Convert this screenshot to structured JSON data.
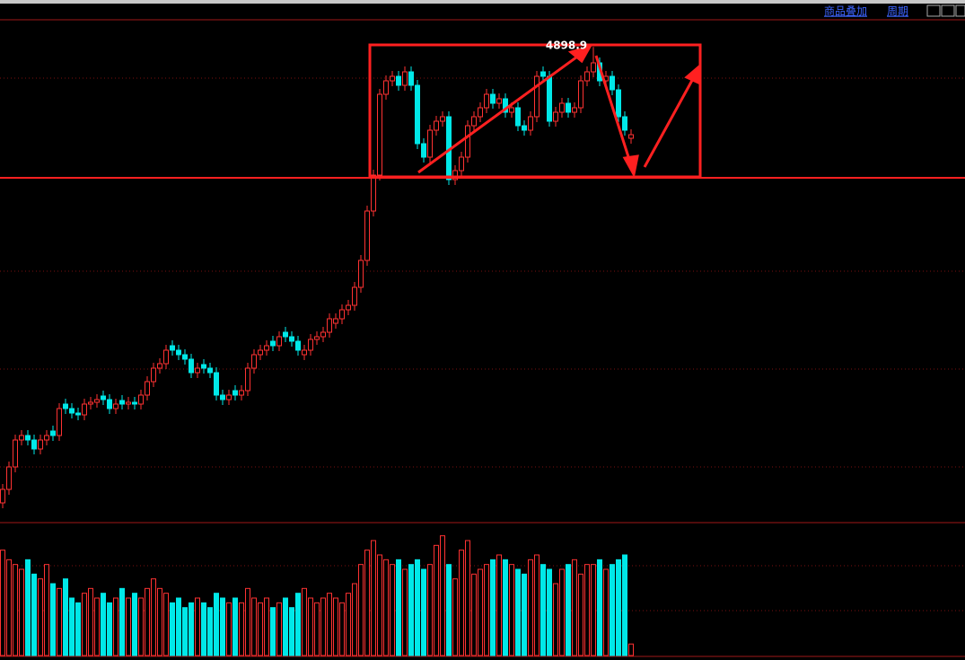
{
  "toolbar": {
    "overlay": "商品叠加",
    "period": "周期"
  },
  "chart_data": {
    "type": "candlestick",
    "open": [
      2360,
      2435,
      2560,
      2710,
      2735,
      2710,
      2660,
      2710,
      2760,
      2735,
      2910,
      2885,
      2860,
      2850,
      2910,
      2920,
      2955,
      2935,
      2885,
      2930,
      2910,
      2920,
      2910,
      2960,
      3035,
      3110,
      3135,
      3235,
      3210,
      3185,
      3160,
      3085,
      3130,
      3110,
      3085,
      2960,
      2935,
      2985,
      2960,
      2985,
      3110,
      3185,
      3210,
      3260,
      3235,
      3310,
      3285,
      3260,
      3185,
      3210,
      3270,
      3285,
      3310,
      3360,
      3385,
      3435,
      3460,
      3560,
      3710,
      3985,
      4185,
      4635,
      4710,
      4735,
      4685,
      4760,
      4685,
      4360,
      4285,
      4435,
      4485,
      4510,
      4160,
      4210,
      4285,
      4460,
      4510,
      4560,
      4635,
      4585,
      4610,
      4535,
      4560,
      4460,
      4435,
      4510,
      4760,
      4735,
      4485,
      4535,
      4585,
      4535,
      4560,
      4710,
      4760,
      4810,
      4710,
      4735,
      4660,
      4510,
      4390
    ],
    "high": [
      2465,
      2590,
      2740,
      2765,
      2765,
      2740,
      2740,
      2765,
      2790,
      2915,
      2940,
      2915,
      2890,
      2940,
      2950,
      2965,
      2985,
      2965,
      2940,
      2960,
      2950,
      2950,
      2990,
      3065,
      3140,
      3165,
      3240,
      3265,
      3240,
      3215,
      3190,
      3140,
      3160,
      3140,
      3115,
      2990,
      2990,
      3015,
      3015,
      3140,
      3215,
      3240,
      3265,
      3290,
      3315,
      3340,
      3315,
      3290,
      3240,
      3300,
      3315,
      3340,
      3415,
      3415,
      3465,
      3490,
      3590,
      3740,
      4015,
      4215,
      4665,
      4740,
      4765,
      4765,
      4790,
      4790,
      4715,
      4390,
      4465,
      4515,
      4540,
      4540,
      4240,
      4315,
      4490,
      4540,
      4590,
      4665,
      4665,
      4640,
      4640,
      4590,
      4590,
      4490,
      4540,
      4765,
      4790,
      4765,
      4565,
      4615,
      4615,
      4590,
      4740,
      4790,
      4898.9,
      4840,
      4765,
      4765,
      4690,
      4540,
      4440
    ],
    "low": [
      2330,
      2405,
      2530,
      2680,
      2680,
      2630,
      2630,
      2680,
      2705,
      2705,
      2855,
      2830,
      2820,
      2820,
      2880,
      2890,
      2905,
      2855,
      2855,
      2880,
      2880,
      2880,
      2880,
      2930,
      3005,
      3080,
      3105,
      3180,
      3155,
      3130,
      3055,
      3055,
      3080,
      3055,
      2930,
      2905,
      2905,
      2930,
      2930,
      2955,
      3080,
      3155,
      3180,
      3205,
      3205,
      3255,
      3230,
      3180,
      3155,
      3180,
      3240,
      3255,
      3280,
      3330,
      3355,
      3405,
      3430,
      3530,
      3680,
      3955,
      4155,
      4605,
      4680,
      4655,
      4655,
      4655,
      4330,
      4255,
      4255,
      4405,
      4455,
      4130,
      4130,
      4180,
      4255,
      4430,
      4480,
      4530,
      4555,
      4555,
      4505,
      4505,
      4430,
      4405,
      4405,
      4480,
      4705,
      4455,
      4455,
      4505,
      4505,
      4505,
      4530,
      4680,
      4730,
      4680,
      4680,
      4630,
      4480,
      4405,
      4360
    ],
    "close": [
      2435,
      2560,
      2710,
      2735,
      2710,
      2660,
      2710,
      2735,
      2735,
      2885,
      2885,
      2860,
      2850,
      2910,
      2920,
      2935,
      2935,
      2885,
      2910,
      2910,
      2920,
      2910,
      2960,
      3035,
      3110,
      3135,
      3210,
      3210,
      3185,
      3160,
      3085,
      3110,
      3110,
      3085,
      2960,
      2935,
      2960,
      2960,
      2985,
      3110,
      3185,
      3210,
      3235,
      3235,
      3285,
      3285,
      3260,
      3210,
      3210,
      3270,
      3285,
      3310,
      3385,
      3385,
      3435,
      3460,
      3560,
      3710,
      3985,
      4185,
      4635,
      4710,
      4735,
      4685,
      4760,
      4685,
      4360,
      4285,
      4435,
      4485,
      4510,
      4160,
      4210,
      4285,
      4460,
      4510,
      4560,
      4635,
      4585,
      4610,
      4535,
      4560,
      4460,
      4435,
      4510,
      4735,
      4735,
      4485,
      4535,
      4585,
      4535,
      4560,
      4710,
      4760,
      4810,
      4710,
      4735,
      4660,
      4510,
      4435,
      4410
    ],
    "volume": [
      110,
      100,
      95,
      90,
      100,
      85,
      80,
      95,
      75,
      70,
      80,
      60,
      55,
      65,
      70,
      60,
      65,
      55,
      60,
      70,
      60,
      65,
      60,
      70,
      80,
      70,
      65,
      55,
      60,
      50,
      55,
      60,
      55,
      50,
      65,
      60,
      55,
      60,
      55,
      70,
      60,
      55,
      60,
      50,
      55,
      60,
      50,
      65,
      70,
      60,
      55,
      60,
      65,
      60,
      55,
      65,
      75,
      95,
      110,
      120,
      105,
      100,
      95,
      100,
      90,
      95,
      100,
      90,
      95,
      115,
      125,
      95,
      80,
      110,
      120,
      85,
      90,
      95,
      100,
      105,
      100,
      95,
      90,
      85,
      100,
      105,
      95,
      90,
      75,
      90,
      95,
      100,
      85,
      95,
      95,
      100,
      90,
      95,
      100,
      105,
      12
    ],
    "ylim": [
      2250,
      5050
    ],
    "volume_ylim": [
      0,
      120
    ],
    "up_color": "#ff3232",
    "down_color": "#00e8e8"
  }
}
